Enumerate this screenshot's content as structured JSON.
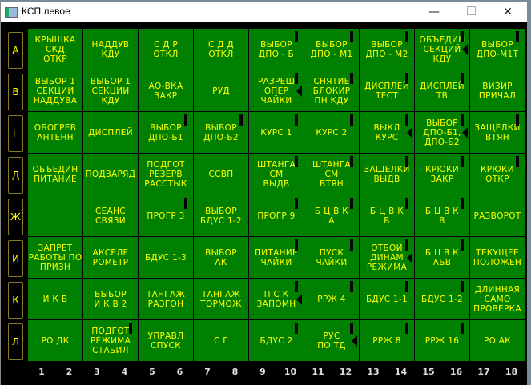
{
  "window": {
    "title": "КСП левое",
    "minimize": "—",
    "close": "✕"
  },
  "row_labels": [
    "А",
    "В",
    "Г",
    "Д",
    "Ж",
    "И",
    "К",
    "Л"
  ],
  "column_numbers": [
    "1",
    "2",
    "3",
    "4",
    "5",
    "6",
    "7",
    "8",
    "9",
    "10",
    "11",
    "12",
    "13",
    "14",
    "15",
    "16",
    "17",
    "18"
  ],
  "rows": [
    [
      {
        "t": "КРЫШКА\nСКД\nОТКР"
      },
      {
        "t": "НАДДУВ\nКДУ"
      },
      {
        "t": "С Д Р\nОТКЛ"
      },
      {
        "t": "С Д Д\nОТКЛ"
      },
      {
        "t": "ВЫБОР\nДПО - Б",
        "bar": true
      },
      {
        "t": "ВЫБОР\nДПО - М1",
        "bar": true
      },
      {
        "t": "ВЫБОР\nДПО - М2",
        "bar": true
      },
      {
        "t": "ОБЪЕДИН\nСЕКЦИЙ\nКДУ",
        "bar": true,
        "arrow": true
      },
      {
        "t": "ВЫБОР\nДПО-М1Т",
        "bar": true
      }
    ],
    [
      {
        "t": "ВЫБОР 1\nСЕКЦИИ\nНАДДУВА"
      },
      {
        "t": "ВЫБОР 1\nСЕКЦИИ\nКДУ"
      },
      {
        "t": "АО-ВКА\nЗАКР"
      },
      {
        "t": "РУД"
      },
      {
        "t": "РАЗРЕШ\nОПЕР\nЧАЙКИ",
        "bar": true,
        "arrow": true
      },
      {
        "t": "СНЯТИЕ\nБЛОКИР\nПН КДУ",
        "bar": true
      },
      {
        "t": "ДИСПЛЕЙ\nТЕСТ",
        "bar": true
      },
      {
        "t": "ДИСПЛЕЙ\nТВ",
        "bar": true
      },
      {
        "t": "ВИЗИР\nПРИЧАЛ"
      }
    ],
    [
      {
        "t": "ОБОГРЕВ\nАНТЕНН"
      },
      {
        "t": "ДИСПЛЕЙ"
      },
      {
        "t": "ВЫБОР\nДПО-Б1",
        "bar": true
      },
      {
        "t": "ВЫБОР\nДПО-Б2",
        "bar": true
      },
      {
        "t": "КУРС 1",
        "bar": true
      },
      {
        "t": "КУРС 2",
        "bar": true
      },
      {
        "t": "ВЫКЛ\nКУРС",
        "bar": true,
        "arrow": true
      },
      {
        "t": "ВЫБОР\nДПО-Б1,\nДПО-Б2",
        "bar": true,
        "arrow": true
      },
      {
        "t": "ЗАЩЕЛКИ\nВТЯН",
        "bar": true
      }
    ],
    [
      {
        "t": "ОБЪЕДИН\nПИТАНИЕ"
      },
      {
        "t": "ПОДЗАРЯД"
      },
      {
        "t": "ПОДГОТ\nРЕЗЕРВ\nРАССТЫК"
      },
      {
        "t": "ССВП"
      },
      {
        "t": "ШТАНГА\nСМ\nВЫДВ",
        "bar": true
      },
      {
        "t": "ШТАНГА\nСМ\nВТЯН",
        "bar": true
      },
      {
        "t": "ЗАЩЕЛКИ\nВЫДВ",
        "bar": true
      },
      {
        "t": "КРЮКИ\nЗАКР",
        "bar": true
      },
      {
        "t": "КРЮКИ\nОТКР",
        "bar": true
      }
    ],
    [
      {
        "t": ""
      },
      {
        "t": "СЕАНС\nСВЯЗИ"
      },
      {
        "t": "ПРОГР 3",
        "bar": true
      },
      {
        "t": "ВЫБОР\nБДУС 1-2"
      },
      {
        "t": "ПРОГР 9",
        "bar": true
      },
      {
        "t": "Б Ц В К\nА",
        "bar": true
      },
      {
        "t": "Б Ц В К\nБ",
        "bar": true
      },
      {
        "t": "Б Ц В К\nВ",
        "bar": true
      },
      {
        "t": "РАЗВОРОТ"
      }
    ],
    [
      {
        "t": "ЗАПРЕТ\nРАБОТЫ ПО\nПРИЗН"
      },
      {
        "t": "АКСЕЛЕ\nРОМЕТР"
      },
      {
        "t": "БДУС 1-3"
      },
      {
        "t": "ВЫБОР\nАК"
      },
      {
        "t": "ПИТАНИЕ\nЧАЙКИ",
        "bar": true
      },
      {
        "t": "ПУСК\nЧАЙКИ",
        "bar": true
      },
      {
        "t": "ОТБОЙ\nДИНАМ\nРЕЖИМА",
        "bar": true,
        "arrow": true
      },
      {
        "t": "Б Ц В К\nАБВ",
        "bar": true
      },
      {
        "t": "ТЕКУЩЕЕ\nПОЛОЖЕН"
      }
    ],
    [
      {
        "t": "И К В"
      },
      {
        "t": "ВЫБОР\nИ К В  2"
      },
      {
        "t": "ТАНГАЖ\nРАЗГОН"
      },
      {
        "t": "ТАНГАЖ\nТОРМОЖ"
      },
      {
        "t": "П С К\nЗАПОМН",
        "bar": true,
        "arrow": true
      },
      {
        "t": "РРЖ 4",
        "bar": true
      },
      {
        "t": "БДУС 1-1",
        "bar": true
      },
      {
        "t": "БДУС 1-2",
        "bar": true
      },
      {
        "t": "ДЛИННАЯ\nСАМО\nПРОВЕРКА"
      }
    ],
    [
      {
        "t": "РО ДК"
      },
      {
        "t": "ПОДГОТ\nРЕЖИМА\nСТАБИЛ",
        "bar": true
      },
      {
        "t": "УПРАВЛ\nСПУСК"
      },
      {
        "t": "С Г"
      },
      {
        "t": "БДУС 2",
        "bar": true
      },
      {
        "t": "РУС\nПО   ТД",
        "bar": true,
        "arrow": true
      },
      {
        "t": "РРЖ 8",
        "bar": true
      },
      {
        "t": "РРЖ 16",
        "bar": true
      },
      {
        "t": "РО АК"
      }
    ]
  ],
  "colors": {
    "cell": "#008000",
    "text": "#ffff00",
    "background": "#000000"
  }
}
